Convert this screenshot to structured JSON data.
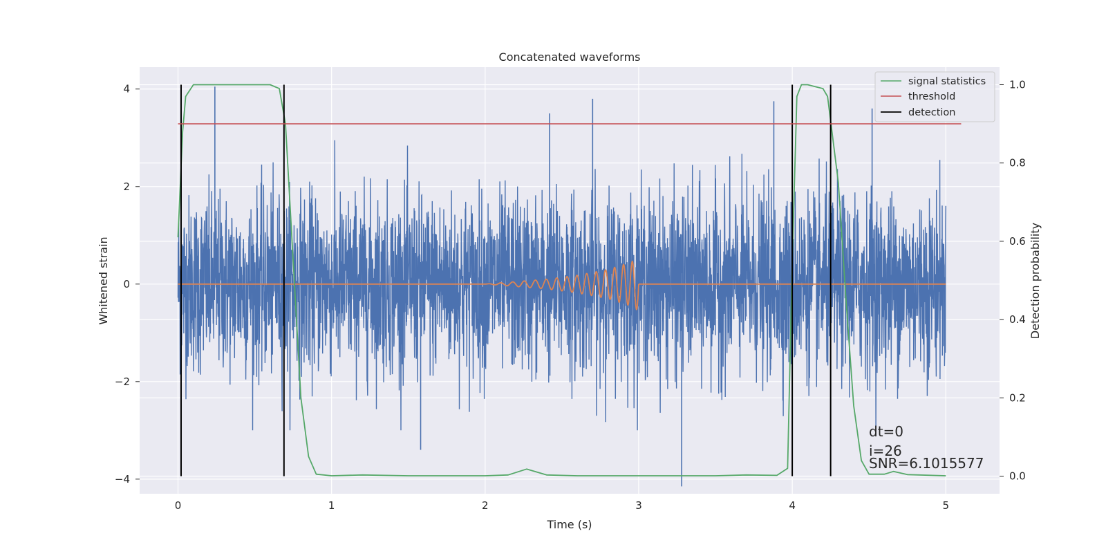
{
  "chart_data": {
    "type": "line",
    "title": "Concatenated waveforms",
    "xlabel": "Time (s)",
    "ylabel_left": "Whitened strain",
    "ylabel_right": "Detection probability",
    "xlim": [
      -0.25,
      5.35
    ],
    "ylim_left": [
      -4.3,
      4.45
    ],
    "ylim_right": [
      -0.045,
      1.045
    ],
    "x_ticks": [
      0,
      1,
      2,
      3,
      4,
      5
    ],
    "x_tick_labels": [
      "0",
      "1",
      "2",
      "3",
      "4",
      "5"
    ],
    "y_left_ticks": [
      -4,
      -2,
      0,
      2,
      4
    ],
    "y_left_tick_labels": [
      "−4",
      "−2",
      "0",
      "2",
      "4"
    ],
    "y_right_ticks": [
      0.0,
      0.2,
      0.4,
      0.6,
      0.8,
      1.0
    ],
    "y_right_tick_labels": [
      "0.0",
      "0.2",
      "0.4",
      "0.6",
      "0.8",
      "1.0"
    ],
    "grid": true,
    "legend_position": "upper right",
    "series": [
      {
        "key": "strain",
        "axis": "left",
        "color": "#4c72b0",
        "description": "whitened strain noise, approx. amplitude band -2.5..2.5 with occasional spikes",
        "noise_std": 0.9,
        "x_range": [
          0,
          5
        ],
        "spikes": [
          [
            0.24,
            4.05
          ],
          [
            3.28,
            -4.15
          ],
          [
            3.88,
            3.75
          ],
          [
            2.7,
            3.8
          ],
          [
            1.58,
            -3.4
          ],
          [
            2.42,
            3.5
          ],
          [
            4.52,
            3.6
          ]
        ]
      },
      {
        "key": "injected_signal",
        "axis": "left",
        "color": "#dd8452",
        "description": "chirp injection between 2 s and 3 s",
        "x": [
          0,
          2,
          2.2,
          2.4,
          2.6,
          2.8,
          2.95,
          3.0,
          3.0,
          5
        ],
        "y_envelope": [
          0,
          0,
          0.05,
          0.1,
          0.18,
          0.3,
          0.45,
          0.55,
          0,
          0
        ]
      },
      {
        "name": "signal statistics",
        "key": "signal_statistics",
        "axis": "right",
        "color": "#55a868",
        "x": [
          0,
          0.03,
          0.05,
          0.1,
          0.2,
          0.4,
          0.6,
          0.66,
          0.7,
          0.75,
          0.8,
          0.85,
          0.9,
          1.0,
          1.2,
          1.5,
          2.0,
          2.15,
          2.27,
          2.4,
          2.6,
          3.0,
          3.5,
          3.7,
          3.9,
          3.97,
          4.0,
          4.03,
          4.06,
          4.1,
          4.2,
          4.23,
          4.3,
          4.35,
          4.4,
          4.45,
          4.5,
          4.6,
          4.66,
          4.75,
          5.0
        ],
        "y": [
          0.61,
          0.88,
          0.97,
          1.0,
          1.0,
          1.0,
          1.0,
          0.99,
          0.9,
          0.55,
          0.2,
          0.05,
          0.005,
          0.001,
          0.003,
          0.001,
          0.001,
          0.003,
          0.018,
          0.003,
          0.001,
          0.001,
          0.001,
          0.003,
          0.002,
          0.02,
          0.55,
          0.97,
          1.0,
          1.0,
          0.99,
          0.97,
          0.75,
          0.45,
          0.18,
          0.04,
          0.005,
          0.005,
          0.012,
          0.004,
          0.001
        ]
      },
      {
        "name": "threshold",
        "key": "threshold",
        "axis": "right",
        "color": "#c44e52",
        "x": [
          0,
          5.1
        ],
        "y": [
          0.9,
          0.9
        ]
      },
      {
        "name": "detection",
        "key": "detection",
        "axis": "right",
        "color": "#000000",
        "vlines_x": [
          0.02,
          0.69,
          4.0,
          4.25
        ],
        "ymin": 0,
        "ymax": 1
      }
    ],
    "legend": [
      "signal statistics",
      "threshold",
      "detection"
    ],
    "annotations": [
      "dt=0",
      "i=26",
      "SNR=6.1015577"
    ]
  }
}
